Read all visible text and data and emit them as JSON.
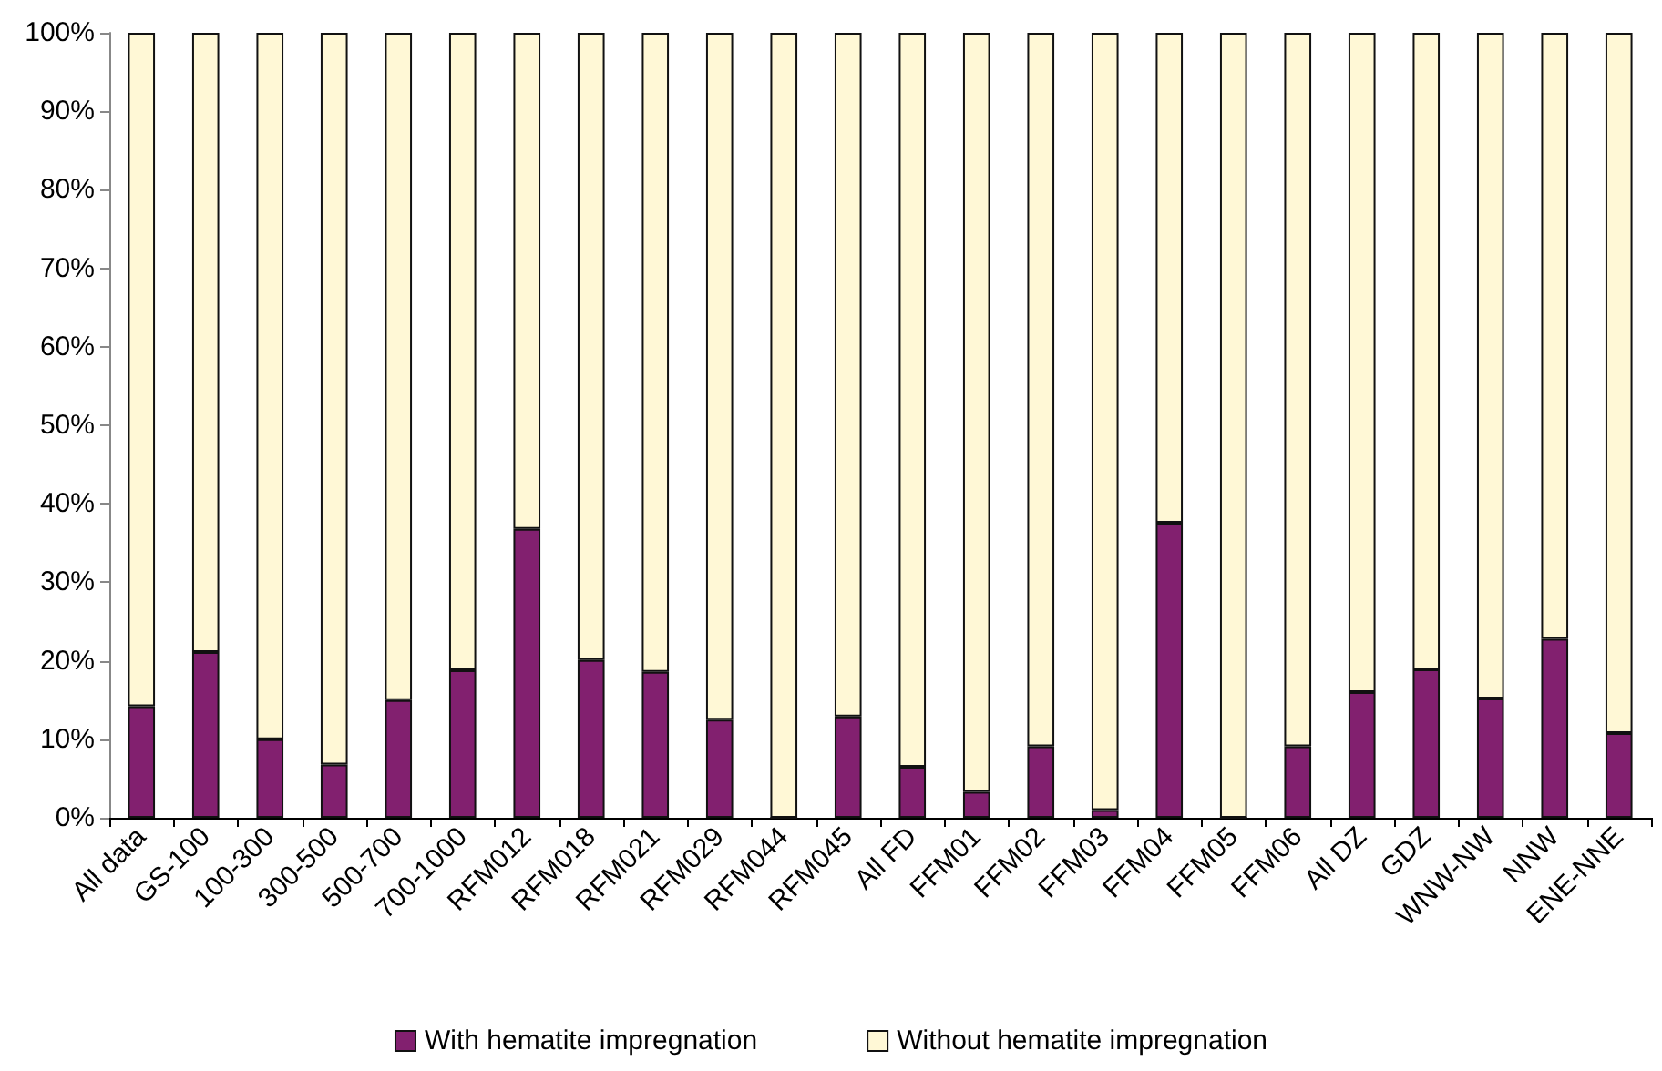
{
  "chart_data": {
    "type": "bar",
    "stacked": true,
    "categories": [
      "All data",
      "GS-100",
      "100-300",
      "300-500",
      "500-700",
      "700-1000",
      "RFM012",
      "RFM018",
      "RFM021",
      "RFM029",
      "RFM044",
      "RFM045",
      "All FD",
      "FFM01",
      "FFM02",
      "FFM03",
      "FFM04",
      "FFM05",
      "FFM06",
      "All DZ",
      "GDZ",
      "WNW-NW",
      "NNW",
      "ENE-NNE"
    ],
    "series": [
      {
        "name": "With hematite impregnation",
        "color": "#82206f",
        "values": [
          14.2,
          21.1,
          10.0,
          6.8,
          15.0,
          18.8,
          36.8,
          20.1,
          18.6,
          12.5,
          0,
          12.9,
          6.5,
          3.3,
          9.1,
          1.0,
          37.6,
          0,
          9.1,
          16.0,
          18.9,
          15.2,
          22.8,
          10.8
        ]
      },
      {
        "name": "Without hematite impregnation",
        "color": "#fff8d6",
        "values": [
          85.8,
          78.9,
          90.0,
          93.2,
          85.0,
          81.2,
          63.2,
          79.9,
          81.4,
          87.5,
          100,
          87.1,
          93.5,
          96.7,
          90.9,
          99.0,
          62.4,
          100,
          90.9,
          84.0,
          81.1,
          84.8,
          77.2,
          89.2
        ]
      }
    ],
    "ylim": [
      0,
      100
    ],
    "yticks": [
      {
        "value": 0,
        "label": "0%"
      },
      {
        "value": 10,
        "label": "10%"
      },
      {
        "value": 20,
        "label": "20%"
      },
      {
        "value": 30,
        "label": "30%"
      },
      {
        "value": 40,
        "label": "40%"
      },
      {
        "value": 50,
        "label": "50%"
      },
      {
        "value": 60,
        "label": "60%"
      },
      {
        "value": 70,
        "label": "70%"
      },
      {
        "value": 80,
        "label": "80%"
      },
      {
        "value": 90,
        "label": "90%"
      },
      {
        "value": 100,
        "label": "100%"
      }
    ],
    "grid": false,
    "legend": "bottom"
  }
}
